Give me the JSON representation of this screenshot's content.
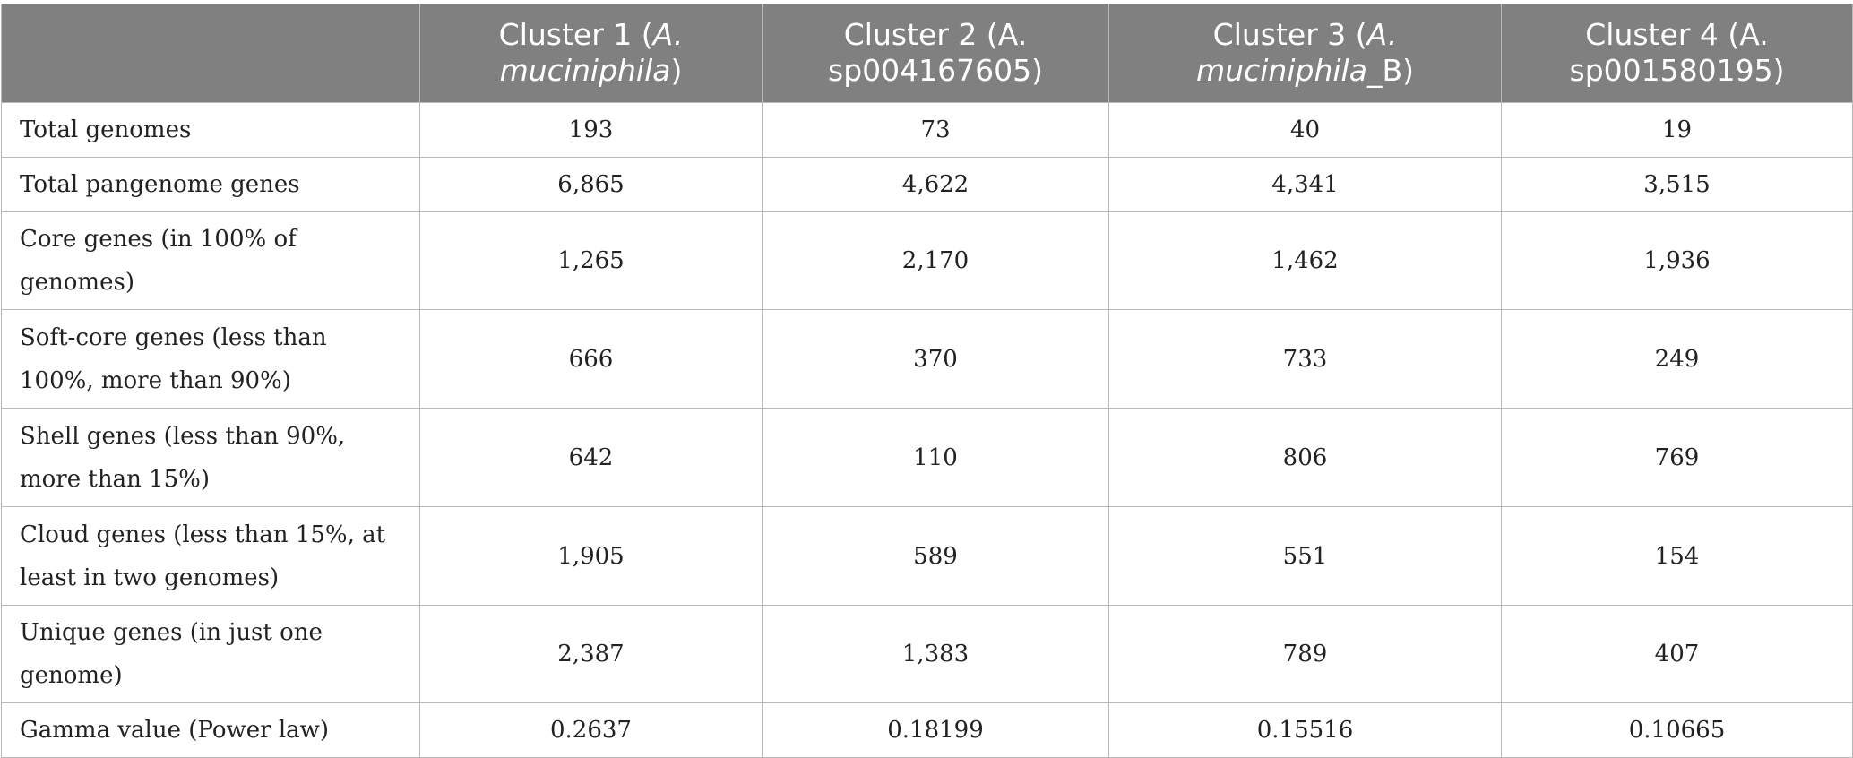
{
  "table": {
    "columns": [
      {
        "pre": "",
        "ital": "",
        "post": ""
      },
      {
        "pre": "Cluster 1 (",
        "ital": "A. muciniphila",
        "post": ")"
      },
      {
        "pre": "Cluster 2 (A. sp004167605)",
        "ital": "",
        "post": ""
      },
      {
        "pre": "Cluster 3 (",
        "ital": "A. muciniphila",
        "post": "_B)"
      },
      {
        "pre": "Cluster 4 (A. sp001580195)",
        "ital": "",
        "post": ""
      }
    ],
    "rows": [
      {
        "label": "Total genomes",
        "values": [
          "193",
          "73",
          "40",
          "19"
        ]
      },
      {
        "label": "Total pangenome genes",
        "values": [
          "6,865",
          "4,622",
          "4,341",
          "3,515"
        ]
      },
      {
        "label": "Core genes (in 100% of genomes)",
        "values": [
          "1,265",
          "2,170",
          "1,462",
          "1,936"
        ]
      },
      {
        "label": "Soft-core genes (less than 100%, more than 90%)",
        "values": [
          "666",
          "370",
          "733",
          "249"
        ]
      },
      {
        "label": "Shell genes (less than 90%, more than 15%)",
        "values": [
          "642",
          "110",
          "806",
          "769"
        ]
      },
      {
        "label": "Cloud genes (less than 15%, at least in two genomes)",
        "values": [
          "1,905",
          "589",
          "551",
          "154"
        ]
      },
      {
        "label": "Unique genes (in just one genome)",
        "values": [
          "2,387",
          "1,383",
          "789",
          "407"
        ]
      },
      {
        "label": "Gamma value (Power law)",
        "values": [
          "0.2637",
          "0.18199",
          "0.15516",
          "0.10665"
        ]
      }
    ]
  }
}
